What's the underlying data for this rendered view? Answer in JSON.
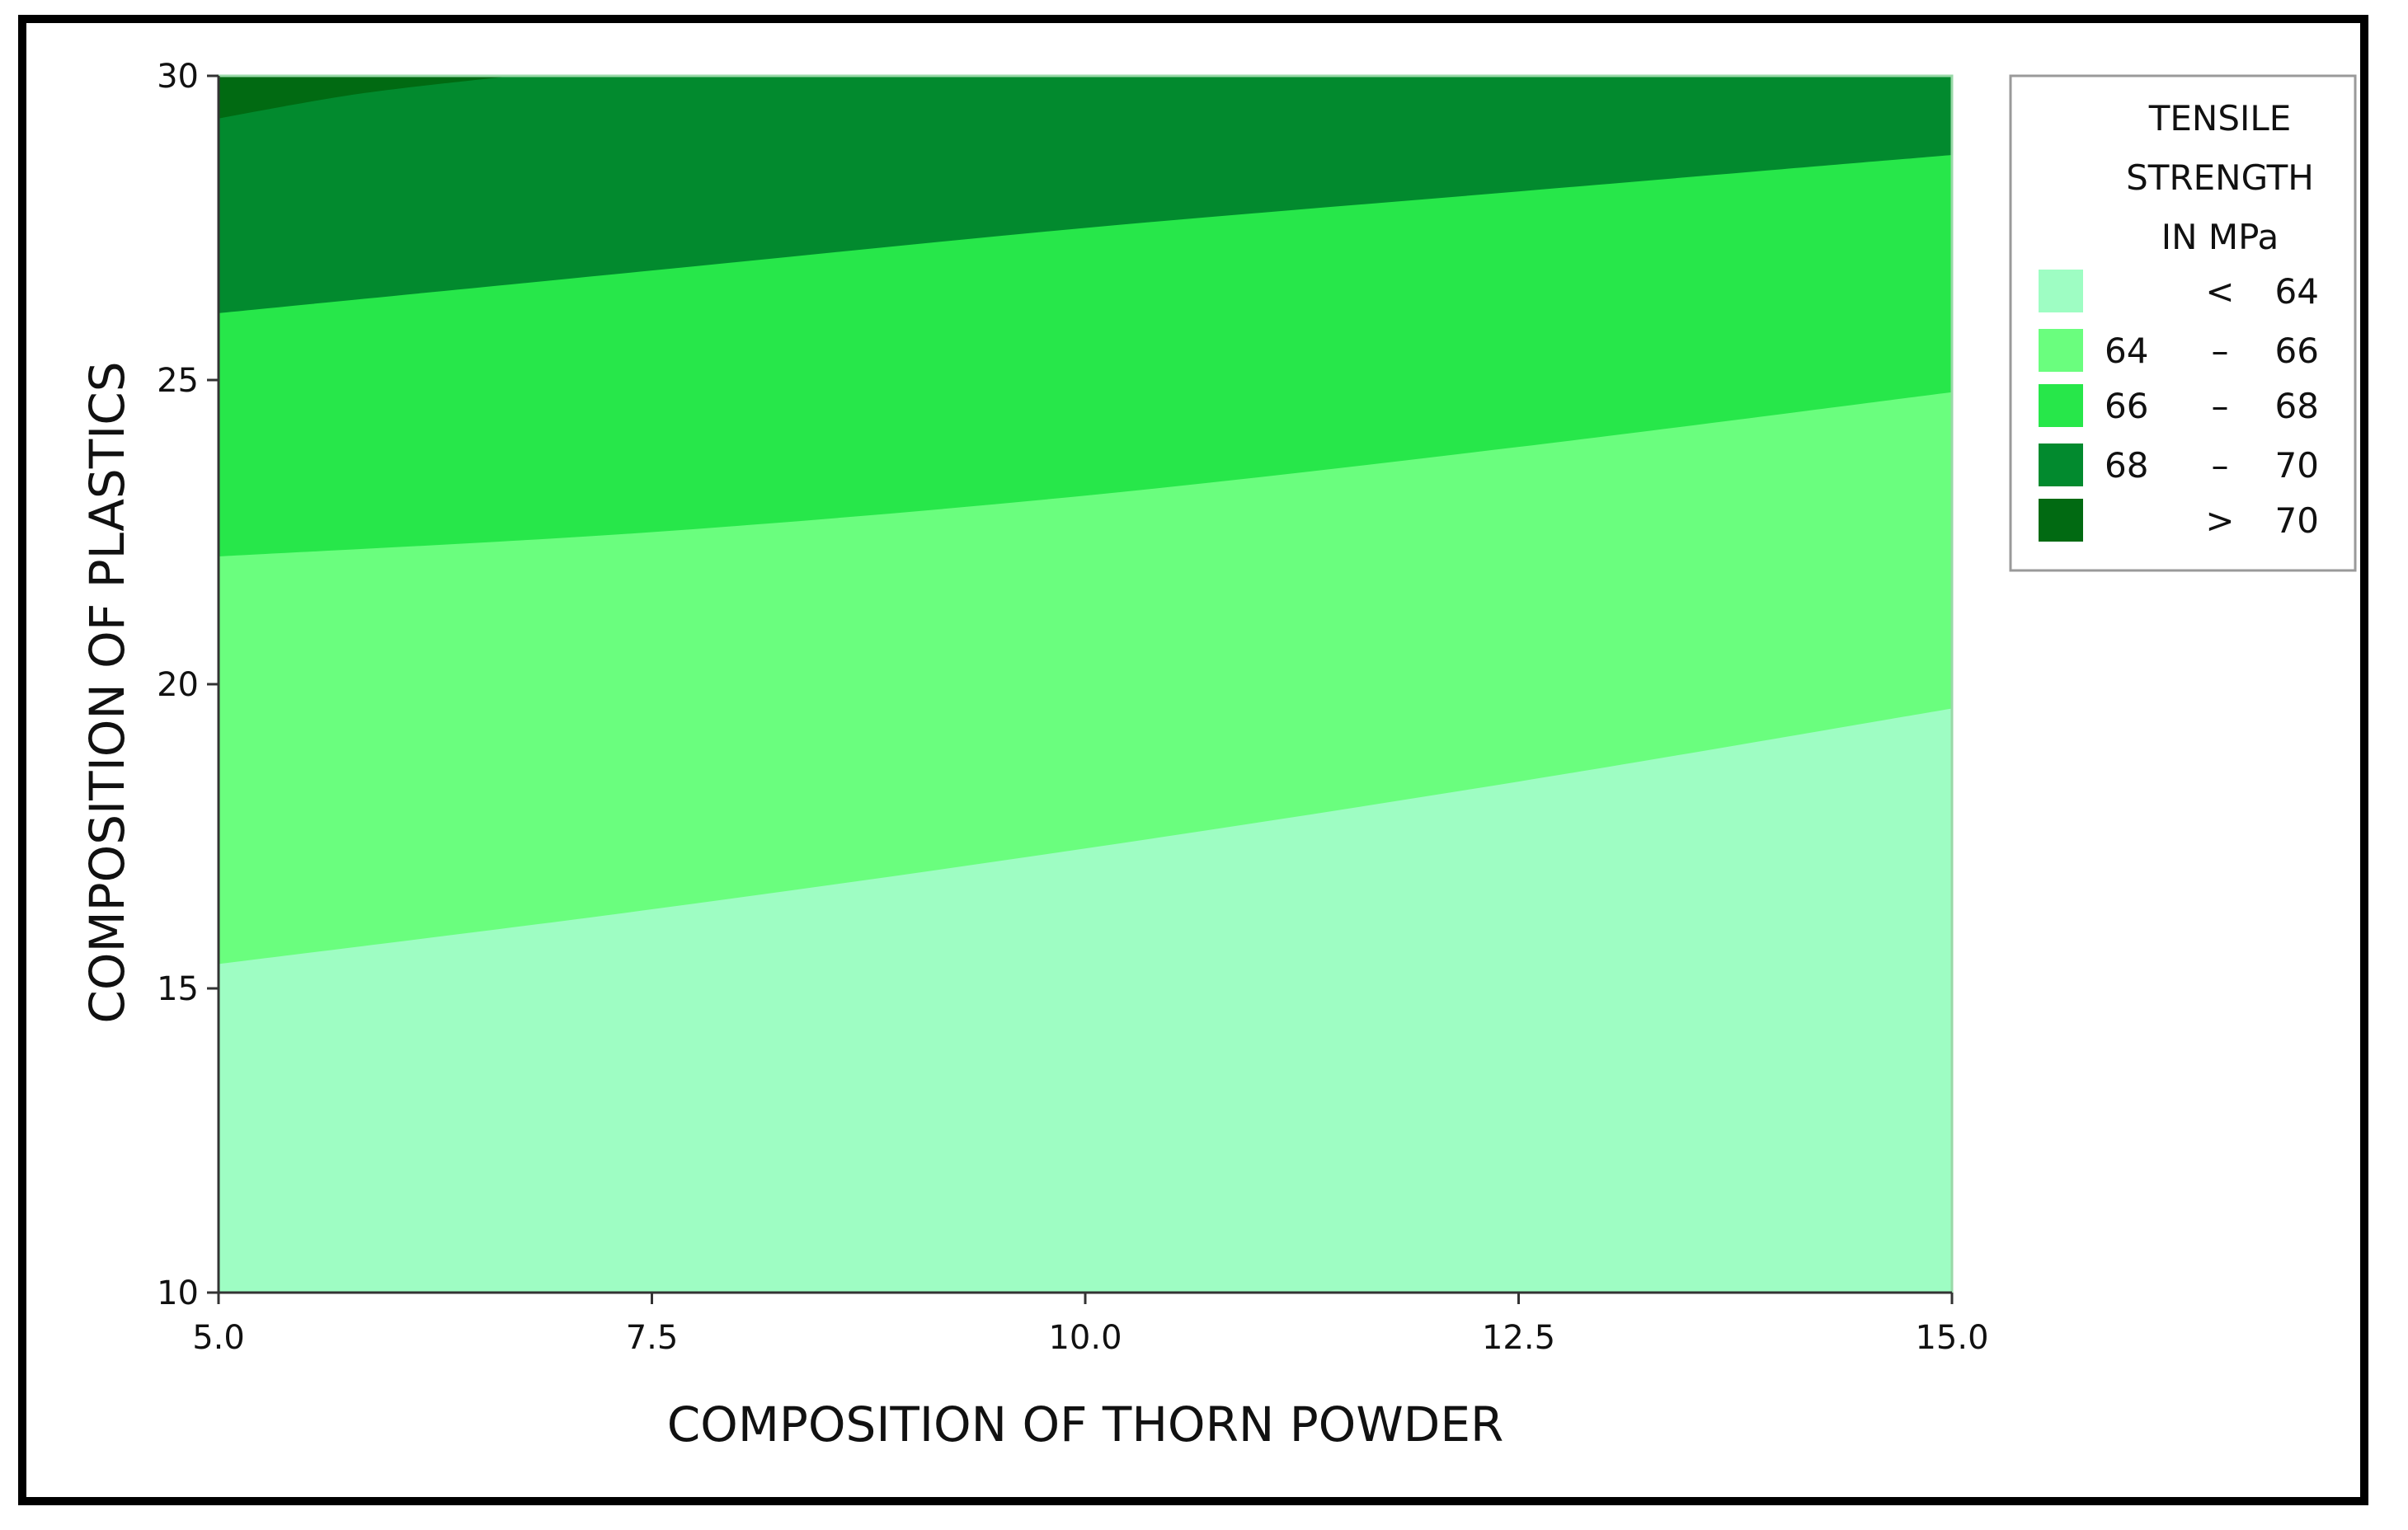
{
  "chart_data": {
    "type": "contour",
    "title": "",
    "xlabel": "COMPOSITION OF THORN POWDER",
    "ylabel": "COMPOSITION OF PLASTICS",
    "xlim": [
      5.0,
      15.0
    ],
    "ylim": [
      10,
      30
    ],
    "x_ticks": [
      "5.0",
      "7.5",
      "10.0",
      "12.5",
      "15.0"
    ],
    "y_ticks": [
      "10",
      "15",
      "20",
      "25",
      "30"
    ],
    "grid": false,
    "legend": {
      "position": "top-right",
      "title": [
        "TENSILE",
        "STRENGTH",
        "IN MPa"
      ],
      "entries": [
        {
          "low": "",
          "op": "<",
          "high": "64",
          "color": "#9efdc3"
        },
        {
          "low": "64",
          "op": "–",
          "high": "66",
          "color": "#6afe7e"
        },
        {
          "low": "66",
          "op": "–",
          "high": "68",
          "color": "#27e74a"
        },
        {
          "low": "68",
          "op": "–",
          "high": "70",
          "color": "#028a2e"
        },
        {
          "low": "",
          "op": ">",
          "high": "70",
          "color": "#016a12"
        }
      ]
    },
    "contour_x": [
      5.0,
      7.5,
      10.0,
      12.5,
      15.0
    ],
    "contour_lines": [
      {
        "level": 64,
        "y": [
          15.4,
          16.3,
          17.3,
          18.4,
          19.6
        ]
      },
      {
        "level": 66,
        "y": [
          22.1,
          22.5,
          23.1,
          23.9,
          24.8
        ]
      },
      {
        "level": 68,
        "y": [
          26.1,
          26.8,
          27.5,
          28.1,
          28.7
        ]
      },
      {
        "level": 70,
        "x": [
          5.0,
          5.8,
          6.7
        ],
        "y": [
          29.3,
          29.7,
          30.0
        ]
      }
    ]
  }
}
